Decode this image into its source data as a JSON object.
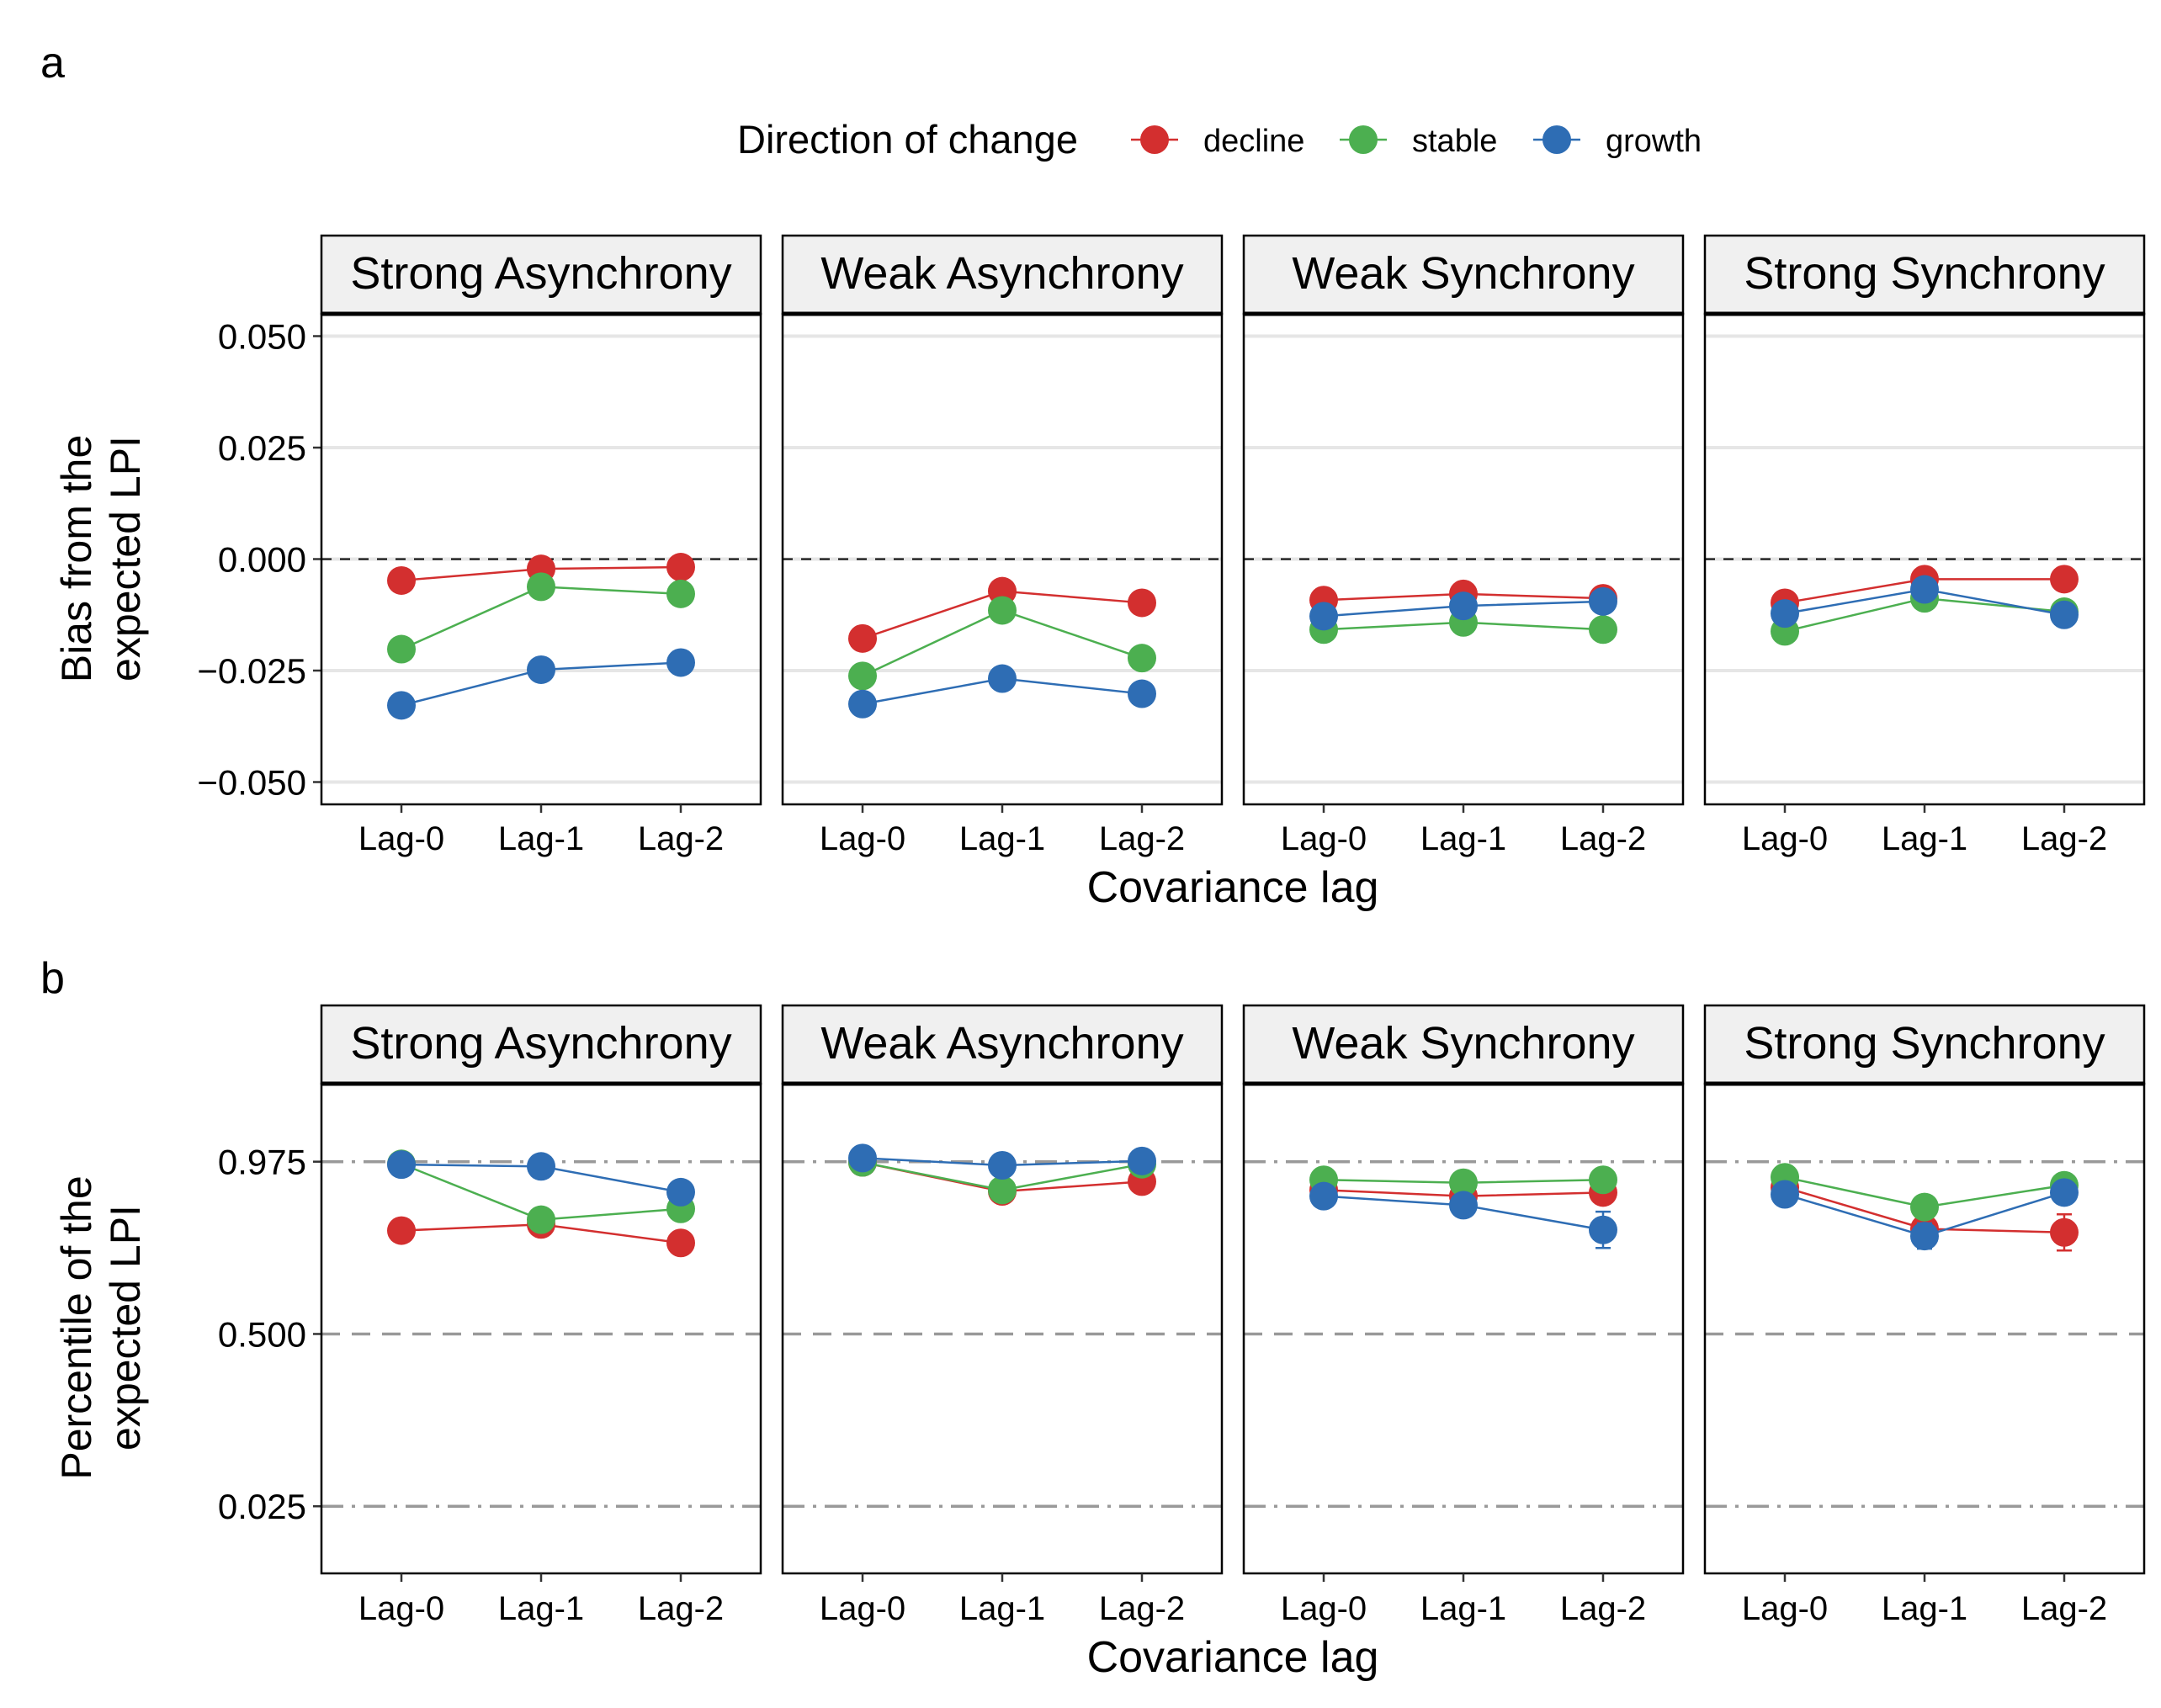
{
  "figure": {
    "panel_letters": [
      "a",
      "b"
    ],
    "legend": {
      "title": "Direction of change",
      "entries": [
        {
          "label": "decline",
          "color": "#D32F2F"
        },
        {
          "label": "stable",
          "color": "#4CAF50"
        },
        {
          "label": "growth",
          "color": "#2E6DB4"
        }
      ]
    }
  },
  "chart_data": [
    {
      "type": "line",
      "panel": "a",
      "facets": [
        "Strong Asynchrony",
        "Weak Asynchrony",
        "Weak Synchrony",
        "Strong Synchrony"
      ],
      "categories": [
        "Lag-0",
        "Lag-1",
        "Lag-2"
      ],
      "xlabel": "Covariance lag",
      "ylabel": "Bias from the\nexpected LPI",
      "ylim": [
        -0.055,
        0.055
      ],
      "yticks": [
        0.05,
        0.025,
        0.0,
        -0.025,
        -0.05
      ],
      "ytick_labels": [
        "0.050",
        "0.025",
        "0.000",
        "−0.025",
        "−0.050"
      ],
      "reference_lines": [
        {
          "y": 0.0,
          "style": "dashed"
        }
      ],
      "grid": "horizontal",
      "series": [
        {
          "name": "decline",
          "values": [
            [
              -0.0048,
              -0.0022,
              -0.0018
            ],
            [
              -0.0178,
              -0.0072,
              -0.0098
            ],
            [
              -0.0092,
              -0.0078,
              -0.0088
            ],
            [
              -0.0098,
              -0.0045,
              -0.0045
            ]
          ]
        },
        {
          "name": "stable",
          "values": [
            [
              -0.0202,
              -0.0062,
              -0.0078
            ],
            [
              -0.0262,
              -0.0115,
              -0.0222
            ],
            [
              -0.0158,
              -0.0142,
              -0.0158
            ],
            [
              -0.0162,
              -0.0088,
              -0.0118
            ]
          ]
        },
        {
          "name": "growth",
          "values": [
            [
              -0.0328,
              -0.0248,
              -0.0232
            ],
            [
              -0.0325,
              -0.0268,
              -0.0302
            ],
            [
              -0.0128,
              -0.0105,
              -0.0095
            ],
            [
              -0.0122,
              -0.0068,
              -0.0125
            ]
          ]
        }
      ]
    },
    {
      "type": "line",
      "panel": "b",
      "facets": [
        "Strong Asynchrony",
        "Weak Asynchrony",
        "Weak Synchrony",
        "Strong Synchrony"
      ],
      "categories": [
        "Lag-0",
        "Lag-1",
        "Lag-2"
      ],
      "xlabel": "Covariance lag",
      "ylabel": "Percentile of the\nexpected LPI",
      "ylim": [
        -0.16,
        1.19
      ],
      "yticks": [
        0.975,
        0.5,
        0.025
      ],
      "ytick_labels": [
        "0.975",
        "0.500",
        "0.025"
      ],
      "reference_lines": [
        {
          "y": 0.975,
          "style": "dotdash"
        },
        {
          "y": 0.5,
          "style": "dashed"
        },
        {
          "y": 0.025,
          "style": "dotdash"
        }
      ],
      "grid": "none",
      "series": [
        {
          "name": "decline",
          "values": [
            [
              0.785,
              0.802,
              0.751
            ],
            [
              0.973,
              0.893,
              0.92
            ],
            [
              0.897,
              0.88,
              0.89
            ],
            [
              0.904,
              0.79,
              0.78
            ]
          ],
          "error": [
            [
              0.03,
              0.02,
              0.01
            ],
            [
              0.006,
              0.03,
              0.01
            ],
            [
              0.02,
              0.02,
              0.03
            ],
            [
              0.02,
              0.03,
              0.05
            ]
          ]
        },
        {
          "name": "stable",
          "values": [
            [
              0.969,
              0.815,
              0.845
            ],
            [
              0.973,
              0.897,
              0.968
            ],
            [
              0.925,
              0.917,
              0.925
            ],
            [
              0.932,
              0.85,
              0.91
            ]
          ],
          "error": [
            [
              0.01,
              0.03,
              0.01
            ],
            [
              0.006,
              0.015,
              0.006
            ],
            [
              0.012,
              0.012,
              0.012
            ],
            [
              0.015,
              0.03,
              0.015
            ]
          ]
        },
        {
          "name": "growth",
          "values": [
            [
              0.967,
              0.962,
              0.891
            ],
            [
              0.985,
              0.965,
              0.977
            ],
            [
              0.88,
              0.855,
              0.787
            ],
            [
              0.885,
              0.77,
              0.89
            ]
          ],
          "error": [
            [
              0.006,
              0.006,
              0.01
            ],
            [
              0.006,
              0.006,
              0.006
            ],
            [
              0.03,
              0.03,
              0.05
            ],
            [
              0.03,
              0.035,
              0.01
            ]
          ]
        }
      ]
    }
  ]
}
